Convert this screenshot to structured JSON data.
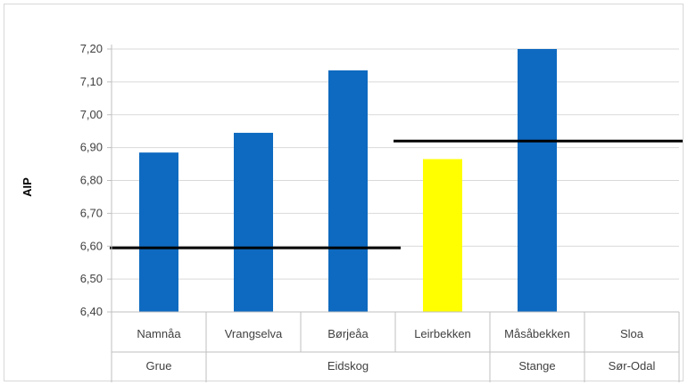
{
  "chart_data": {
    "type": "bar",
    "title": "",
    "xlabel": "",
    "ylabel": "AIP",
    "ylim": [
      6.4,
      7.2
    ],
    "yticks": [
      "6,40",
      "6,50",
      "6,60",
      "6,70",
      "6,80",
      "6,90",
      "7,00",
      "7,10",
      "7,20"
    ],
    "ytick_values": [
      6.4,
      6.5,
      6.6,
      6.7,
      6.8,
      6.9,
      7.0,
      7.1,
      7.2
    ],
    "grid": true,
    "legend": "none",
    "categories": [
      "Namnåa",
      "Vrangselva",
      "Børjeåa",
      "Leirbekken",
      "Måsåbekken",
      "Sloa"
    ],
    "groups": [
      {
        "label": "Grue",
        "span": 1
      },
      {
        "label": "Eidskog",
        "span": 3
      },
      {
        "label": "Stange",
        "span": 1
      },
      {
        "label": "Sør-Odal",
        "span": 1
      }
    ],
    "values": [
      6.885,
      6.945,
      7.135,
      6.865,
      7.2,
      null
    ],
    "bar_colors": [
      "#0e6ac0",
      "#0e6ac0",
      "#0e6ac0",
      "#ffff00",
      "#0e6ac0",
      "#0e6ac0"
    ],
    "reference_lines": [
      {
        "from_category": 0,
        "to_category": 2,
        "value": 6.595,
        "color": "#000000"
      },
      {
        "from_category": 3,
        "to_category": 5,
        "value": 6.92,
        "color": "#000000"
      }
    ]
  }
}
